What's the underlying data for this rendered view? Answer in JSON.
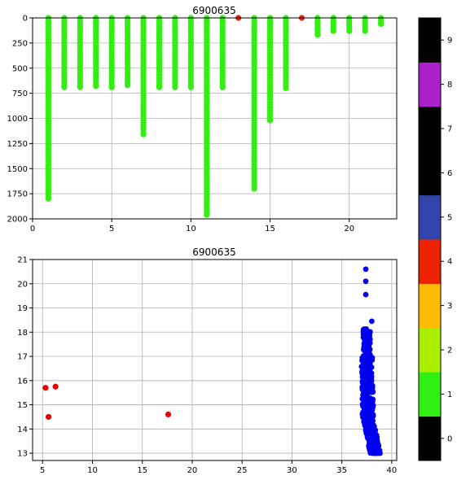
{
  "chart_data": [
    {
      "type": "scatter",
      "title": "6900635",
      "xlabel": "",
      "ylabel": "",
      "xlim": [
        0,
        23
      ],
      "ylim": [
        2000,
        0
      ],
      "y_inverted": true,
      "grid": true,
      "x_ticks": [
        "0",
        "5",
        "10",
        "15",
        "20"
      ],
      "y_ticks": [
        "0",
        "250",
        "500",
        "750",
        "1000",
        "1250",
        "1500",
        "1750",
        "2000"
      ],
      "flag_colors": {
        "1": "#33ee11",
        "4": "#ee2211"
      },
      "profiles": [
        {
          "x": 1,
          "pmin": 0,
          "pmax": 1800,
          "flag": 1
        },
        {
          "x": 2,
          "pmin": 0,
          "pmax": 690,
          "flag": 1
        },
        {
          "x": 3,
          "pmin": 0,
          "pmax": 690,
          "flag": 1
        },
        {
          "x": 4,
          "pmin": 0,
          "pmax": 680,
          "flag": 1
        },
        {
          "x": 5,
          "pmin": 0,
          "pmax": 690,
          "flag": 1
        },
        {
          "x": 6,
          "pmin": 0,
          "pmax": 670,
          "flag": 1
        },
        {
          "x": 7,
          "pmin": 0,
          "pmax": 1160,
          "flag": 1
        },
        {
          "x": 8,
          "pmin": 0,
          "pmax": 690,
          "flag": 1
        },
        {
          "x": 9,
          "pmin": 0,
          "pmax": 690,
          "flag": 1
        },
        {
          "x": 10,
          "pmin": 0,
          "pmax": 690,
          "flag": 1
        },
        {
          "x": 11,
          "pmin": 0,
          "pmax": 1960,
          "flag": 1
        },
        {
          "x": 12,
          "pmin": 0,
          "pmax": 690,
          "flag": 1
        },
        {
          "x": 14,
          "pmin": 0,
          "pmax": 1700,
          "flag": 1
        },
        {
          "x": 15,
          "pmin": 0,
          "pmax": 1020,
          "flag": 1
        },
        {
          "x": 16,
          "pmin": 0,
          "pmax": 700,
          "flag": 1
        },
        {
          "x": 18,
          "pmin": 0,
          "pmax": 170,
          "flag": 1
        },
        {
          "x": 19,
          "pmin": 0,
          "pmax": 130,
          "flag": 1
        },
        {
          "x": 20,
          "pmin": 0,
          "pmax": 130,
          "flag": 1
        },
        {
          "x": 21,
          "pmin": 0,
          "pmax": 130,
          "flag": 1
        },
        {
          "x": 22,
          "pmin": 0,
          "pmax": 60,
          "flag": 1
        }
      ],
      "flagged_points": [
        {
          "x": 13,
          "y": 0,
          "flag": 4
        },
        {
          "x": 17,
          "y": 0,
          "flag": 4
        }
      ]
    },
    {
      "type": "scatter",
      "title": "6900635",
      "xlabel": "",
      "ylabel": "",
      "xlim": [
        4,
        40.5
      ],
      "ylim": [
        12.7,
        21
      ],
      "grid": true,
      "x_ticks": [
        "5",
        "10",
        "15",
        "20",
        "25",
        "30",
        "35",
        "40"
      ],
      "y_ticks": [
        "13",
        "14",
        "15",
        "16",
        "17",
        "18",
        "19",
        "20",
        "21"
      ],
      "series": [
        {
          "color": "#0000ee",
          "cluster": {
            "x_min": 36.5,
            "x_max": 38.9,
            "y_min": 13.0,
            "y_max": 20.7
          },
          "outliers": [
            {
              "x": 38.0,
              "y": 18.45
            },
            {
              "x": 37.4,
              "y": 19.55
            },
            {
              "x": 37.4,
              "y": 20.1
            },
            {
              "x": 37.4,
              "y": 20.6
            }
          ]
        },
        {
          "color": "#ee0000",
          "points": [
            {
              "x": 5.3,
              "y": 15.7
            },
            {
              "x": 6.3,
              "y": 15.75
            },
            {
              "x": 5.6,
              "y": 14.5
            },
            {
              "x": 17.6,
              "y": 14.6
            }
          ]
        }
      ]
    }
  ],
  "colorbar": {
    "tick_labels": [
      "0",
      "1",
      "2",
      "3",
      "4",
      "5",
      "6",
      "7",
      "8",
      "9"
    ],
    "colors": [
      "#000000",
      "#33ee11",
      "#aaee00",
      "#ffbb00",
      "#ee2200",
      "#3344aa",
      "#000000",
      "#000000",
      "#aa22cc",
      "#000000"
    ]
  }
}
